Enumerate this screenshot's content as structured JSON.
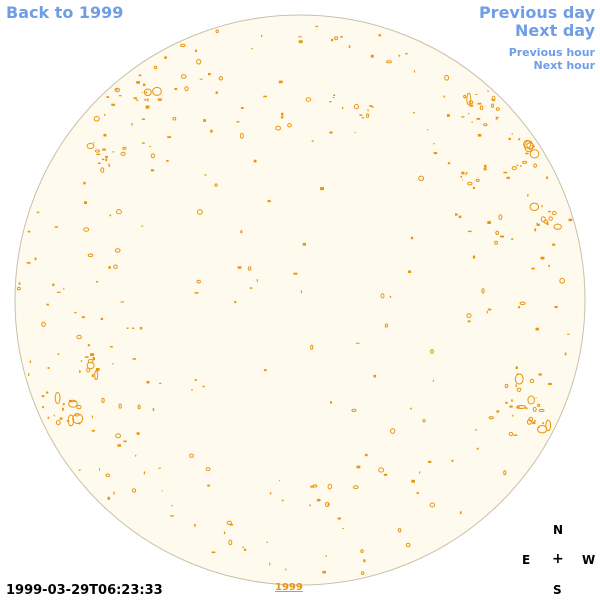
{
  "nav": {
    "back_label": "Back to 1999",
    "previous_day_label": "Previous day",
    "next_day_label": "Next day",
    "previous_hour_label": "Previous hour",
    "next_hour_label": "Next hour"
  },
  "footer": {
    "timestamp": "1999-03-29T06:23:33",
    "year_link": "1999"
  },
  "compass": {
    "north": "N",
    "south": "S",
    "east": "E",
    "west": "W",
    "center": "+"
  },
  "colors": {
    "disk_fill": "#fffaee",
    "disk_outline": "#c9c0aa",
    "contour": "#e8950f",
    "link": "#6f9ee6"
  }
}
